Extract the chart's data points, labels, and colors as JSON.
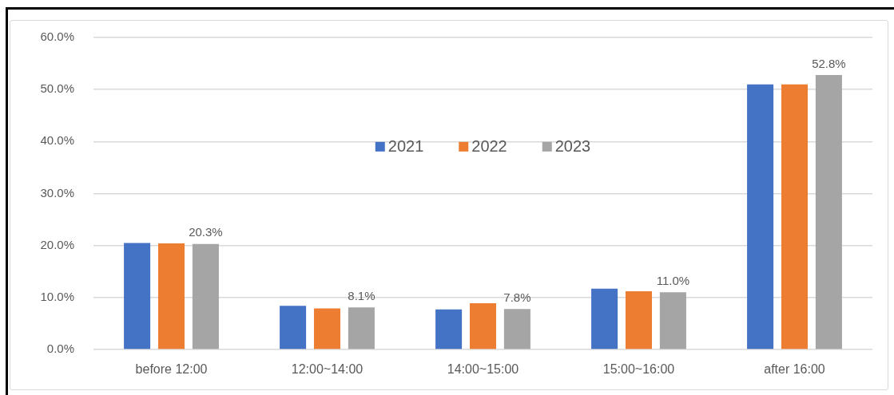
{
  "chart_data": {
    "type": "bar",
    "categories": [
      "before 12:00",
      "12:00~14:00",
      "14:00~15:00",
      "15:00~16:00",
      "after 16:00"
    ],
    "series": [
      {
        "name": "2021",
        "color": "#4472c4",
        "values": [
          20.5,
          8.4,
          7.7,
          11.7,
          51.0
        ]
      },
      {
        "name": "2022",
        "color": "#ed7d31",
        "values": [
          20.4,
          7.9,
          8.9,
          11.2,
          51.0
        ]
      },
      {
        "name": "2023",
        "color": "#a5a5a5",
        "values": [
          20.3,
          8.1,
          7.8,
          11.0,
          52.8
        ],
        "value_labels": [
          "20.3%",
          "8.1%",
          "7.8%",
          "11.0%",
          "52.8%"
        ]
      }
    ],
    "ylim": [
      0,
      60
    ],
    "yticks": [
      {
        "value": 0,
        "label": "0.0%"
      },
      {
        "value": 10,
        "label": "10.0%"
      },
      {
        "value": 20,
        "label": "20.0%"
      },
      {
        "value": 30,
        "label": "30.0%"
      },
      {
        "value": 40,
        "label": "40.0%"
      },
      {
        "value": 50,
        "label": "50.0%"
      },
      {
        "value": 60,
        "label": "60.0%"
      }
    ],
    "grid": "y",
    "legend": "top"
  }
}
